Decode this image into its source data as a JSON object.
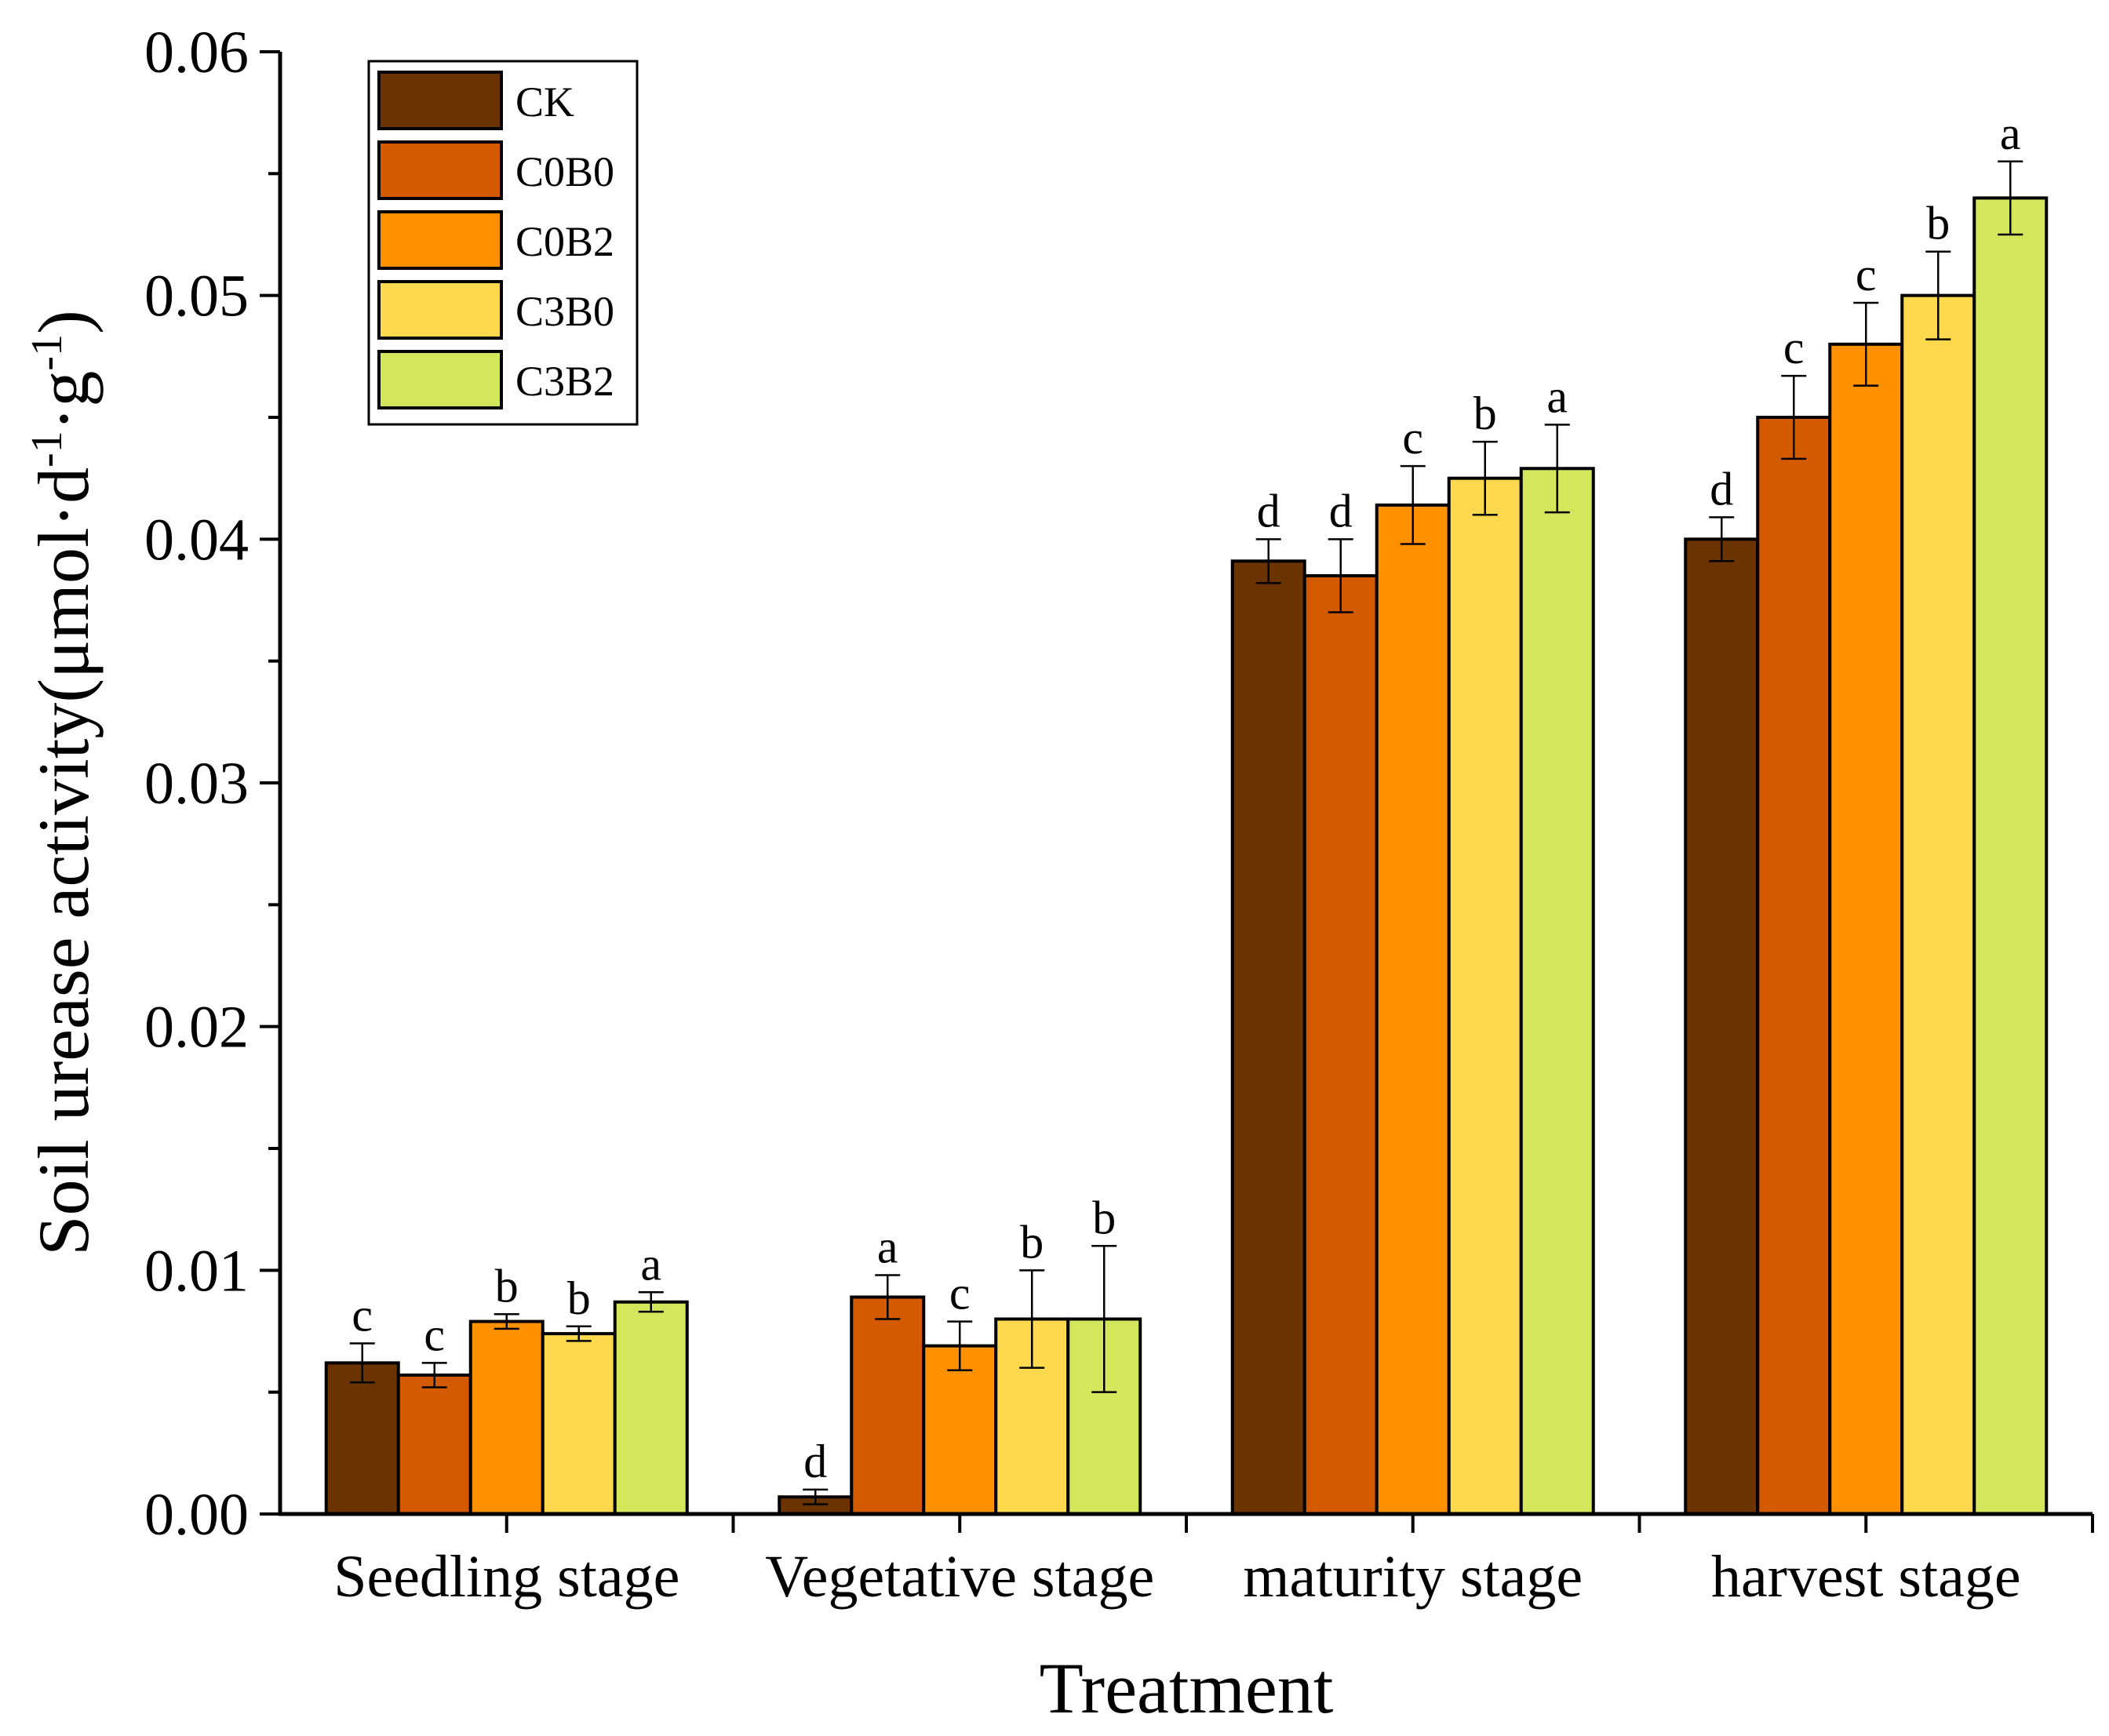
{
  "chart_data": {
    "type": "bar",
    "title": "",
    "xlabel": "Treatment",
    "ylabel": "Soil urease activity(μmol·d-1·g-1)",
    "ylabel_parts": {
      "pre": "Soil urease activity(μmol·d",
      "sup1": "-1",
      "mid": "·g",
      "sup2": "-1",
      "post": ")"
    },
    "ylim": [
      0,
      0.06
    ],
    "y_ticks": [
      "0.00",
      "0.01",
      "0.02",
      "0.03",
      "0.04",
      "0.05",
      "0.06"
    ],
    "categories": [
      "Seedling stage",
      "Vegetative stage",
      "maturity stage",
      "harvest stage"
    ],
    "legend_position": "top-left",
    "series": [
      {
        "name": "CK",
        "color": "#6b3300",
        "values": [
          0.0062,
          0.0007,
          0.0391,
          0.04
        ],
        "errors": [
          0.0008,
          0.0003,
          0.0009,
          0.0009
        ],
        "labels": [
          "c",
          "d",
          "d",
          "d"
        ]
      },
      {
        "name": "C0B0",
        "color": "#d45a00",
        "values": [
          0.0057,
          0.0089,
          0.0385,
          0.045
        ],
        "errors": [
          0.0005,
          0.0009,
          0.0015,
          0.0017
        ],
        "labels": [
          "c",
          "a",
          "d",
          "c"
        ]
      },
      {
        "name": "C0B2",
        "color": "#ff9000",
        "values": [
          0.0079,
          0.0069,
          0.0414,
          0.048
        ],
        "errors": [
          0.0003,
          0.001,
          0.0016,
          0.0017
        ],
        "labels": [
          "b",
          "c",
          "c",
          "c"
        ]
      },
      {
        "name": "C3B0",
        "color": "#ffd94d",
        "values": [
          0.0074,
          0.008,
          0.0425,
          0.05
        ],
        "errors": [
          0.0003,
          0.002,
          0.0015,
          0.0018
        ],
        "labels": [
          "b",
          "b",
          "b",
          "b"
        ]
      },
      {
        "name": "C3B2",
        "color": "#d4e65c",
        "values": [
          0.0087,
          0.008,
          0.0429,
          0.054
        ],
        "errors": [
          0.0004,
          0.003,
          0.0018,
          0.0015
        ],
        "labels": [
          "a",
          "b",
          "a",
          "a"
        ]
      }
    ]
  }
}
